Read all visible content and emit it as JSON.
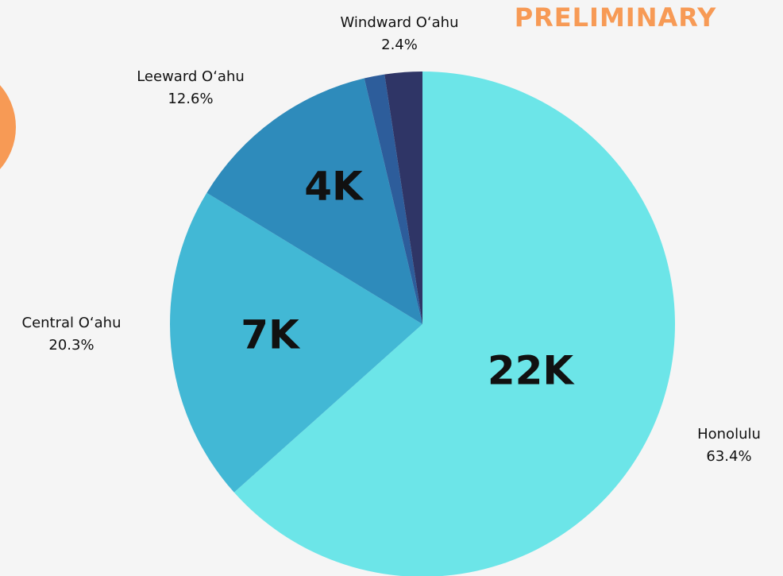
{
  "chart_data": {
    "type": "pie",
    "annotation": "PRELIMINARY",
    "categories": [
      "Honolulu",
      "Central O‘ahu",
      "Leeward O‘ahu",
      null,
      "Windward O‘ahu"
    ],
    "values": [
      63.4,
      20.3,
      12.6,
      1.3,
      2.4
    ],
    "value_labels": [
      "63.4%",
      "20.3%",
      "12.6%",
      null,
      "2.4%"
    ],
    "slice_labels": [
      "22K",
      "7K",
      "4K",
      null,
      null
    ],
    "colors": [
      "#6ce5e8",
      "#42b8d5",
      "#2e8bbb",
      "#2d5d9b",
      "#2f3566"
    ]
  }
}
